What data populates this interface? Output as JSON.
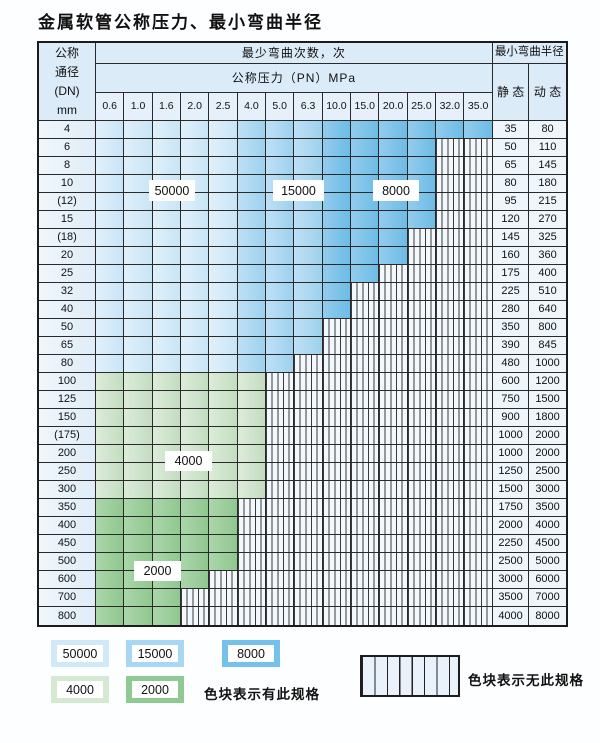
{
  "title": "金属软管公称压力、最小弯曲半径",
  "table": {
    "corner_lines": [
      "公称",
      "通径",
      "(DN)",
      "mm"
    ],
    "bend_cycles_header": "最少弯曲次数，次",
    "radius_header": "最小弯曲半径",
    "pressure_header": "公称压力（PN）MPa",
    "static_header": "静 态",
    "dynamic_header": "动 态",
    "pressure_columns": [
      "0.6",
      "1.0",
      "1.6",
      "2.0",
      "2.5",
      "4.0",
      "5.0",
      "6.3",
      "10.0",
      "15.0",
      "20.0",
      "25.0",
      "32.0",
      "35.0"
    ],
    "shade_by_column": {
      "b1_cols": [
        0,
        4
      ],
      "b2_cols": [
        5,
        7
      ],
      "b3_cols": [
        8,
        13
      ]
    },
    "rows": [
      {
        "dn": "4",
        "colored": 14,
        "shade": "blue",
        "static": "35",
        "dynamic": "80"
      },
      {
        "dn": "6",
        "colored": 12,
        "shade": "blue",
        "static": "50",
        "dynamic": "110"
      },
      {
        "dn": "8",
        "colored": 12,
        "shade": "blue",
        "static": "65",
        "dynamic": "145"
      },
      {
        "dn": "10",
        "colored": 12,
        "shade": "blue",
        "static": "80",
        "dynamic": "180"
      },
      {
        "dn": "(12)",
        "colored": 12,
        "shade": "blue",
        "static": "95",
        "dynamic": "215"
      },
      {
        "dn": "15",
        "colored": 12,
        "shade": "blue",
        "static": "120",
        "dynamic": "270"
      },
      {
        "dn": "(18)",
        "colored": 11,
        "shade": "blue",
        "static": "145",
        "dynamic": "325"
      },
      {
        "dn": "20",
        "colored": 11,
        "shade": "blue",
        "static": "160",
        "dynamic": "360"
      },
      {
        "dn": "25",
        "colored": 10,
        "shade": "blue",
        "static": "175",
        "dynamic": "400"
      },
      {
        "dn": "32",
        "colored": 9,
        "shade": "blue",
        "static": "225",
        "dynamic": "510"
      },
      {
        "dn": "40",
        "colored": 9,
        "shade": "blue",
        "static": "280",
        "dynamic": "640"
      },
      {
        "dn": "50",
        "colored": 8,
        "shade": "blue",
        "static": "350",
        "dynamic": "800"
      },
      {
        "dn": "65",
        "colored": 8,
        "shade": "blue",
        "static": "390",
        "dynamic": "845"
      },
      {
        "dn": "80",
        "colored": 7,
        "shade": "blue",
        "static": "480",
        "dynamic": "1000"
      },
      {
        "dn": "100",
        "colored": 6,
        "shade": "g1",
        "static": "600",
        "dynamic": "1200"
      },
      {
        "dn": "125",
        "colored": 6,
        "shade": "g1",
        "static": "750",
        "dynamic": "1500"
      },
      {
        "dn": "150",
        "colored": 6,
        "shade": "g1",
        "static": "900",
        "dynamic": "1800"
      },
      {
        "dn": "(175)",
        "colored": 6,
        "shade": "g1",
        "static": "1000",
        "dynamic": "2000"
      },
      {
        "dn": "200",
        "colored": 6,
        "shade": "g1",
        "static": "1000",
        "dynamic": "2000"
      },
      {
        "dn": "250",
        "colored": 6,
        "shade": "g1",
        "static": "1250",
        "dynamic": "2500"
      },
      {
        "dn": "300",
        "colored": 6,
        "shade": "g1",
        "static": "1500",
        "dynamic": "3000"
      },
      {
        "dn": "350",
        "colored": 5,
        "shade": "g2",
        "static": "1750",
        "dynamic": "3500"
      },
      {
        "dn": "400",
        "colored": 5,
        "shade": "g2",
        "static": "2000",
        "dynamic": "4000"
      },
      {
        "dn": "450",
        "colored": 5,
        "shade": "g2",
        "static": "2250",
        "dynamic": "4500"
      },
      {
        "dn": "500",
        "colored": 5,
        "shade": "g2",
        "static": "2500",
        "dynamic": "5000"
      },
      {
        "dn": "600",
        "colored": 4,
        "shade": "g2",
        "static": "3000",
        "dynamic": "6000"
      },
      {
        "dn": "700",
        "colored": 3,
        "shade": "g2",
        "static": "3500",
        "dynamic": "7000"
      },
      {
        "dn": "800",
        "colored": 3,
        "shade": "g2",
        "static": "4000",
        "dynamic": "8000"
      }
    ]
  },
  "region_labels": [
    {
      "text": "50000"
    },
    {
      "text": "15000"
    },
    {
      "text": "8000"
    },
    {
      "text": "4000"
    },
    {
      "text": "2000"
    }
  ],
  "legend": {
    "chips": [
      {
        "label": "50000",
        "color": "#cfe9f9"
      },
      {
        "label": "15000",
        "color": "#a8d7f3"
      },
      {
        "label": "8000",
        "color": "#74c2ec"
      },
      {
        "label": "4000",
        "color": "#d5e8d2"
      },
      {
        "label": "2000",
        "color": "#8fca93"
      }
    ],
    "has_spec_text": "色块表示有此规格",
    "no_spec_text": "色块表示无此规格"
  },
  "colors": {
    "cycles_50000": "#cfe9f9",
    "cycles_15000": "#a8d7f3",
    "cycles_8000": "#74c2ec",
    "cycles_4000": "#d5e8d2",
    "cycles_2000": "#8fca93",
    "header_bg": "#dcebf8",
    "hatch_line": "#3a3a3a"
  }
}
